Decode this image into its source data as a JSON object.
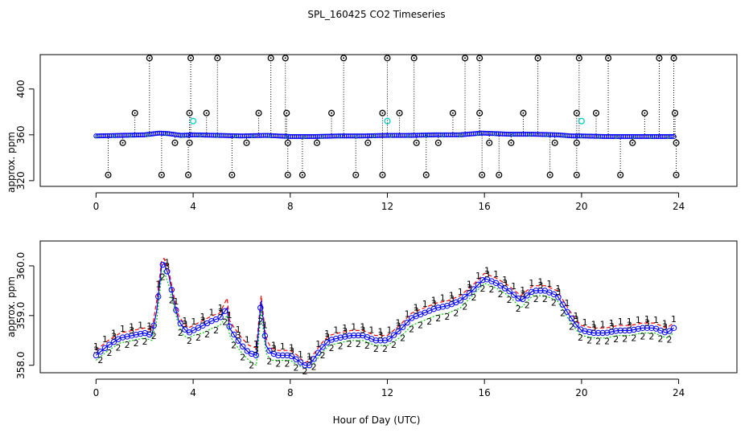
{
  "title": "SPL_160425  CO2 Timeseries",
  "xlabel": "Hour of Day (UTC)",
  "colors": {
    "series1": "#ff0000",
    "series2": "#00cc00",
    "series3": "#0000ff",
    "outlier": "#000000",
    "flagged": "#00cccc"
  },
  "chart_data": [
    {
      "type": "scatter",
      "panel": "top",
      "ylabel": "approx. ppm",
      "xlim": [
        -2.3,
        26.4
      ],
      "ylim": [
        315,
        430
      ],
      "xticks": [
        0,
        4,
        8,
        12,
        16,
        20,
        24
      ],
      "yticks": [
        320,
        360,
        400
      ],
      "baseline_series": {
        "name": "3",
        "x": [
          0,
          1,
          2,
          2.6,
          3,
          3.5,
          4,
          5,
          6,
          7,
          8,
          9,
          10,
          11,
          12,
          13,
          14,
          15,
          15.9,
          16.5,
          17,
          18,
          19,
          19.6,
          20,
          21,
          22,
          23,
          23.8
        ],
        "values": [
          359,
          359.5,
          360,
          361.5,
          361,
          359.5,
          360,
          359.5,
          359,
          359.5,
          358.5,
          358.5,
          359,
          359,
          359.5,
          359.5,
          360,
          360,
          361.5,
          361,
          360.5,
          360.5,
          360,
          359,
          359,
          358.5,
          358.5,
          358.5,
          358.5
        ]
      },
      "outliers_high": {
        "x": [
          2.2,
          3.9,
          5.0,
          7.2,
          7.8,
          10.2,
          12.0,
          13.1,
          15.2,
          15.8,
          18.2,
          19.9,
          21.1,
          23.2,
          23.8
        ],
        "values": [
          427,
          427,
          427,
          427,
          427,
          427,
          427,
          427,
          427,
          427,
          427,
          427,
          427,
          427,
          427
        ]
      },
      "outliers_mid": {
        "x": [
          1.6,
          3.85,
          4.55,
          6.7,
          7.85,
          9.7,
          11.8,
          12.5,
          14.7,
          15.8,
          17.6,
          19.8,
          20.6,
          22.6,
          23.85
        ],
        "values": [
          379,
          379,
          379,
          379,
          379,
          379,
          379,
          379,
          379,
          379,
          379,
          379,
          379,
          379,
          379
        ]
      },
      "outliers_low": {
        "x": [
          0.5,
          2.7,
          3.8,
          5.6,
          7.9,
          8.5,
          10.7,
          11.8,
          13.6,
          15.9,
          16.6,
          18.7,
          19.8,
          21.6,
          23.9
        ],
        "values": [
          325,
          325,
          325,
          325,
          325,
          325,
          325,
          325,
          325,
          325,
          325,
          325,
          325,
          325,
          325
        ]
      },
      "outliers_near": {
        "x": [
          1.1,
          3.25,
          3.85,
          6.2,
          7.9,
          9.1,
          11.2,
          13.2,
          14.1,
          16.2,
          17.1,
          18.9,
          19.8,
          22.1,
          23.9
        ],
        "values": [
          353,
          353,
          353,
          353,
          353,
          353,
          353,
          353,
          353,
          353,
          353,
          353,
          353,
          353,
          353
        ]
      },
      "flagged": {
        "x": [
          4.0,
          12.0,
          20.0
        ],
        "values": [
          372,
          372,
          372
        ]
      }
    },
    {
      "type": "line",
      "panel": "bottom",
      "ylabel": "approx. ppm",
      "xlim": [
        -2.3,
        26.4
      ],
      "ylim": [
        357.85,
        360.5
      ],
      "xticks": [
        0,
        4,
        8,
        12,
        16,
        20,
        24
      ],
      "yticks": [
        358.0,
        359.0,
        360.0
      ],
      "x": [
        0,
        0.5,
        1,
        1.5,
        2,
        2.3,
        2.5,
        2.7,
        2.8,
        3,
        3.2,
        3.4,
        3.6,
        3.8,
        4,
        4.4,
        4.8,
        5.1,
        5.4,
        5.5,
        5.7,
        6,
        6.3,
        6.6,
        6.8,
        7,
        7.2,
        7.5,
        7.8,
        8,
        8.3,
        8.6,
        8.8,
        9,
        9.3,
        9.6,
        10,
        10.5,
        11,
        11.5,
        12,
        12.5,
        13,
        13.5,
        14,
        14.5,
        15,
        15.5,
        16,
        16.5,
        17,
        17.5,
        18,
        18.5,
        19,
        19.5,
        19.8,
        20,
        20.5,
        21,
        21.5,
        22,
        22.5,
        23,
        23.5,
        23.8
      ],
      "series": [
        {
          "name": "1",
          "values": [
            358.3,
            358.5,
            358.65,
            358.7,
            358.75,
            358.7,
            359.3,
            360.1,
            360.15,
            359.9,
            359.4,
            359.0,
            358.85,
            358.75,
            358.8,
            358.9,
            359.0,
            359.05,
            359.35,
            358.9,
            358.75,
            358.55,
            358.4,
            358.35,
            359.4,
            358.55,
            358.35,
            358.3,
            358.3,
            358.3,
            358.2,
            358.05,
            358.1,
            358.25,
            358.45,
            358.6,
            358.65,
            358.7,
            358.7,
            358.6,
            358.6,
            358.8,
            359.05,
            359.15,
            359.25,
            359.3,
            359.4,
            359.6,
            359.85,
            359.75,
            359.6,
            359.4,
            359.6,
            359.6,
            359.5,
            359.1,
            358.9,
            358.8,
            358.75,
            358.75,
            358.8,
            358.8,
            358.85,
            358.85,
            358.75,
            358.85
          ]
        },
        {
          "name": "2",
          "values": [
            358.1,
            358.3,
            358.45,
            358.5,
            358.55,
            358.5,
            358.9,
            359.8,
            359.9,
            359.6,
            359.2,
            358.8,
            358.6,
            358.55,
            358.6,
            358.65,
            358.75,
            358.8,
            359.0,
            358.6,
            358.45,
            358.25,
            358.1,
            358.0,
            359.1,
            358.25,
            358.1,
            358.1,
            358.1,
            358.1,
            358.0,
            357.95,
            357.95,
            358.05,
            358.25,
            358.4,
            358.45,
            358.5,
            358.5,
            358.4,
            358.4,
            358.55,
            358.8,
            358.9,
            359.0,
            359.05,
            359.15,
            359.4,
            359.65,
            359.55,
            359.4,
            359.15,
            359.4,
            359.4,
            359.3,
            358.9,
            358.7,
            358.6,
            358.55,
            358.55,
            358.6,
            358.6,
            358.65,
            358.65,
            358.55,
            358.65
          ]
        },
        {
          "name": "3",
          "values": [
            358.2,
            358.4,
            358.55,
            358.6,
            358.65,
            358.6,
            359.1,
            360.0,
            360.05,
            359.8,
            359.3,
            358.9,
            358.75,
            358.65,
            358.7,
            358.8,
            358.9,
            358.95,
            359.15,
            358.75,
            358.6,
            358.4,
            358.25,
            358.2,
            359.3,
            358.4,
            358.25,
            358.2,
            358.2,
            358.2,
            358.1,
            358.0,
            358.0,
            358.15,
            358.35,
            358.5,
            358.55,
            358.6,
            358.6,
            358.5,
            358.5,
            358.7,
            358.95,
            359.05,
            359.15,
            359.2,
            359.3,
            359.5,
            359.75,
            359.65,
            359.5,
            359.3,
            359.5,
            359.5,
            359.4,
            359.0,
            358.8,
            358.7,
            358.65,
            358.65,
            358.7,
            358.7,
            358.75,
            358.75,
            358.65,
            358.75
          ]
        }
      ]
    }
  ]
}
